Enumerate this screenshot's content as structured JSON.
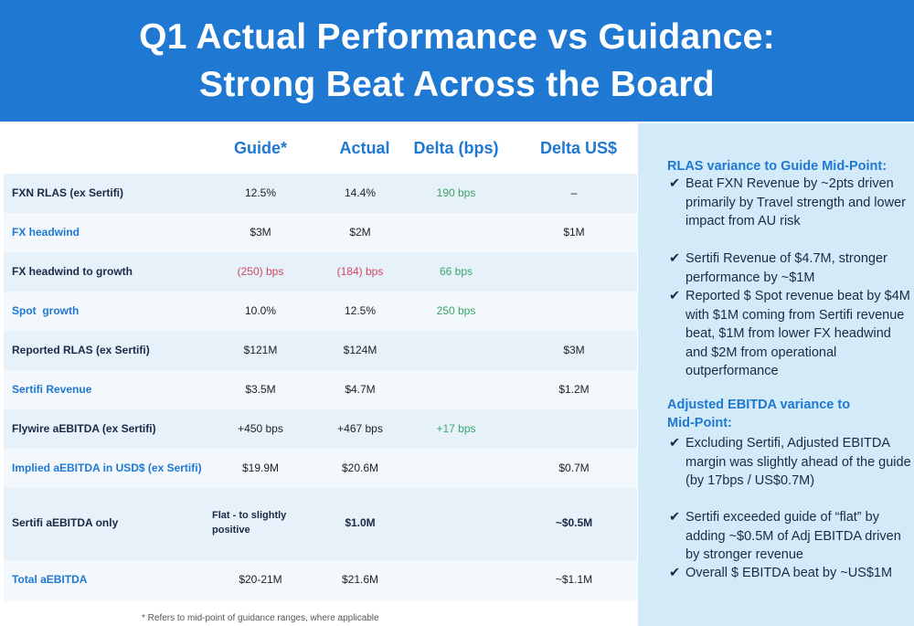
{
  "header": {
    "title_line1": "Q1 Actual Performance vs Guidance:",
    "title_line2": "Strong Beat Across the Board"
  },
  "table": {
    "columns": [
      "Guide*",
      "Actual",
      "Delta (bps)",
      "Delta US$"
    ],
    "rows": [
      {
        "label": "FXN RLAS (ex Sertifi)",
        "guide": "12.5%",
        "actual": "14.4%",
        "delta_bps": "190 bps",
        "delta_usd": "–"
      },
      {
        "label": "FX headwind",
        "guide": "$3M",
        "actual": "$2M",
        "delta_bps": "",
        "delta_usd": "$1M"
      },
      {
        "label": "FX headwind to growth",
        "guide": "(250) bps",
        "actual": "(184) bps",
        "delta_bps": "66 bps",
        "delta_usd": ""
      },
      {
        "label": "Spot  growth",
        "guide": "10.0%",
        "actual": "12.5%",
        "delta_bps": "250 bps",
        "delta_usd": ""
      },
      {
        "label": "Reported RLAS (ex Sertifi)",
        "guide": "$121M",
        "actual": "$124M",
        "delta_bps": "",
        "delta_usd": "$3M"
      },
      {
        "label": "Sertifi Revenue",
        "guide": "$3.5M",
        "actual": "$4.7M",
        "delta_bps": "",
        "delta_usd": "$1.2M"
      },
      {
        "label": "Flywire aEBITDA (ex Sertifi)",
        "guide": "+450 bps",
        "actual": "+467 bps",
        "delta_bps": "+17 bps",
        "delta_usd": ""
      },
      {
        "label": "Implied aEBITDA in USD$ (ex Sertifi)",
        "guide": "$19.9M",
        "actual": "$20.6M",
        "delta_bps": "",
        "delta_usd": "$0.7M"
      },
      {
        "label": "Sertifi aEBITDA only",
        "guide_line1": "Flat - to slightly",
        "guide_line2": "positive",
        "actual": "$1.0M",
        "delta_bps": "",
        "delta_usd": "~$0.5M"
      },
      {
        "label": "Total aEBITDA",
        "guide": "$20-21M",
        "actual": "$21.6M",
        "delta_bps": "",
        "delta_usd": "~$1.1M"
      }
    ],
    "footnote": "* Refers to mid-point of guidance ranges, where applicable"
  },
  "side": {
    "section1_title": "RLAS variance to Guide Mid-Point:",
    "section1_bullets": [
      "Beat FXN Revenue by ~2pts driven primarily by Travel strength and lower impact from AU risk",
      "Sertifi Revenue of $4.7M, stronger performance by ~$1M",
      "Reported $ Spot revenue beat by $4M with $1M coming from Sertifi revenue beat, $1M from lower FX headwind and $2M from operational outperformance"
    ],
    "section2_title_line1": "Adjusted EBITDA variance to",
    "section2_title_line2": "Mid-Point:",
    "section2_bullets": [
      "Excluding Sertifi, Adjusted EBITDA margin was slightly ahead of the guide (by 17bps / US$0.7M)",
      "Sertifi exceeded guide of “flat” by adding ~$0.5M of Adj EBITDA driven by stronger revenue",
      "Overall $ EBITDA beat by ~US$1M"
    ],
    "tick_glyph": "✔"
  },
  "colors": {
    "accent": "#1f78d1",
    "positive": "#3aa66a",
    "negative": "#d1465f",
    "panel": "#d3ebf8"
  }
}
